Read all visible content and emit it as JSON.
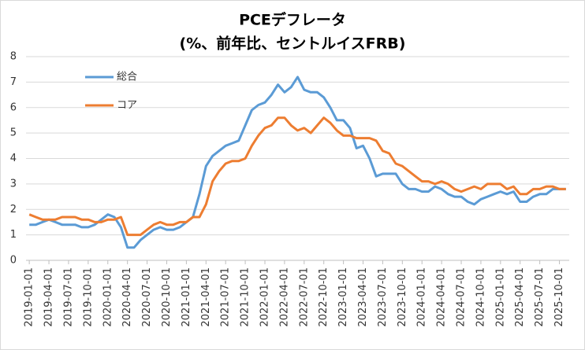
{
  "chart_data": {
    "type": "line",
    "title": "PCEデフレータ",
    "subtitle": "(%、前年比、セントルイスFRB)",
    "categories": [
      "2019-01-01",
      null,
      null,
      "2019-04-01",
      null,
      null,
      "2019-07-01",
      null,
      null,
      "2019-10-01",
      null,
      null,
      "2020-01-01",
      null,
      null,
      "2020-04-01",
      null,
      null,
      "2020-07-01",
      null,
      null,
      "2020-10-01",
      null,
      null,
      "2021-01-01",
      null,
      null,
      "2021-04-01",
      null,
      null,
      "2021-07-01",
      null,
      null,
      "2021-10-01",
      null,
      null,
      "2022-01-01",
      null,
      null,
      "2022-04-01",
      null,
      null,
      "2022-07-01",
      null,
      null,
      "2022-10-01",
      null,
      null,
      "2023-01-01",
      null,
      null,
      "2023-04-01",
      null,
      null,
      "2023-07-01",
      null,
      null,
      "2023-10-01",
      null,
      null,
      "2024-01-01",
      null,
      null,
      "2024-04-01",
      null,
      null,
      "2024-07-01",
      null,
      null,
      "2024-10-01",
      null,
      null,
      "2025-01-01",
      null,
      null,
      "2025-04-01",
      null,
      null,
      "2025-07-01",
      null,
      null,
      "2025-10-01",
      null
    ],
    "series": [
      {
        "name": "総合",
        "color": "#5b9bd5",
        "values": [
          1.4,
          1.4,
          1.5,
          1.6,
          1.5,
          1.4,
          1.4,
          1.4,
          1.3,
          1.3,
          1.4,
          1.6,
          1.8,
          1.7,
          1.3,
          0.5,
          0.5,
          0.8,
          1.0,
          1.2,
          1.3,
          1.2,
          1.2,
          1.3,
          1.5,
          1.7,
          2.6,
          3.7,
          4.1,
          4.3,
          4.5,
          4.6,
          4.7,
          5.3,
          5.9,
          6.1,
          6.2,
          6.5,
          6.9,
          6.6,
          6.8,
          7.2,
          6.7,
          6.6,
          6.6,
          6.4,
          6.0,
          5.5,
          5.5,
          5.2,
          4.4,
          4.5,
          4.0,
          3.3,
          3.4,
          3.4,
          3.4,
          3.0,
          2.8,
          2.8,
          2.7,
          2.7,
          2.9,
          2.8,
          2.6,
          2.5,
          2.5,
          2.3,
          2.2,
          2.4,
          2.5,
          2.6,
          2.7,
          2.6,
          2.7,
          2.3,
          2.3,
          2.5,
          2.6,
          2.6,
          2.8,
          2.8,
          2.8
        ]
      },
      {
        "name": "コア",
        "color": "#ed7d31",
        "values": [
          1.8,
          1.7,
          1.6,
          1.6,
          1.6,
          1.7,
          1.7,
          1.7,
          1.6,
          1.6,
          1.5,
          1.5,
          1.6,
          1.6,
          1.7,
          1.0,
          1.0,
          1.0,
          1.2,
          1.4,
          1.5,
          1.4,
          1.4,
          1.5,
          1.5,
          1.7,
          1.7,
          2.2,
          3.1,
          3.5,
          3.8,
          3.9,
          3.9,
          4.0,
          4.5,
          4.9,
          5.2,
          5.3,
          5.6,
          5.6,
          5.3,
          5.1,
          5.2,
          5.0,
          5.3,
          5.6,
          5.4,
          5.1,
          4.9,
          4.9,
          4.8,
          4.8,
          4.8,
          4.7,
          4.3,
          4.2,
          3.8,
          3.7,
          3.5,
          3.3,
          3.1,
          3.1,
          3.0,
          3.1,
          3.0,
          2.8,
          2.7,
          2.8,
          2.9,
          2.8,
          3.0,
          3.0,
          3.0,
          2.8,
          2.9,
          2.6,
          2.6,
          2.8,
          2.8,
          2.9,
          2.9,
          2.8,
          2.8
        ]
      }
    ],
    "ylim": [
      0,
      8
    ],
    "yticks": [
      0,
      1,
      2,
      3,
      4,
      5,
      6,
      7,
      8
    ],
    "grid": true,
    "legend": "upper left"
  }
}
